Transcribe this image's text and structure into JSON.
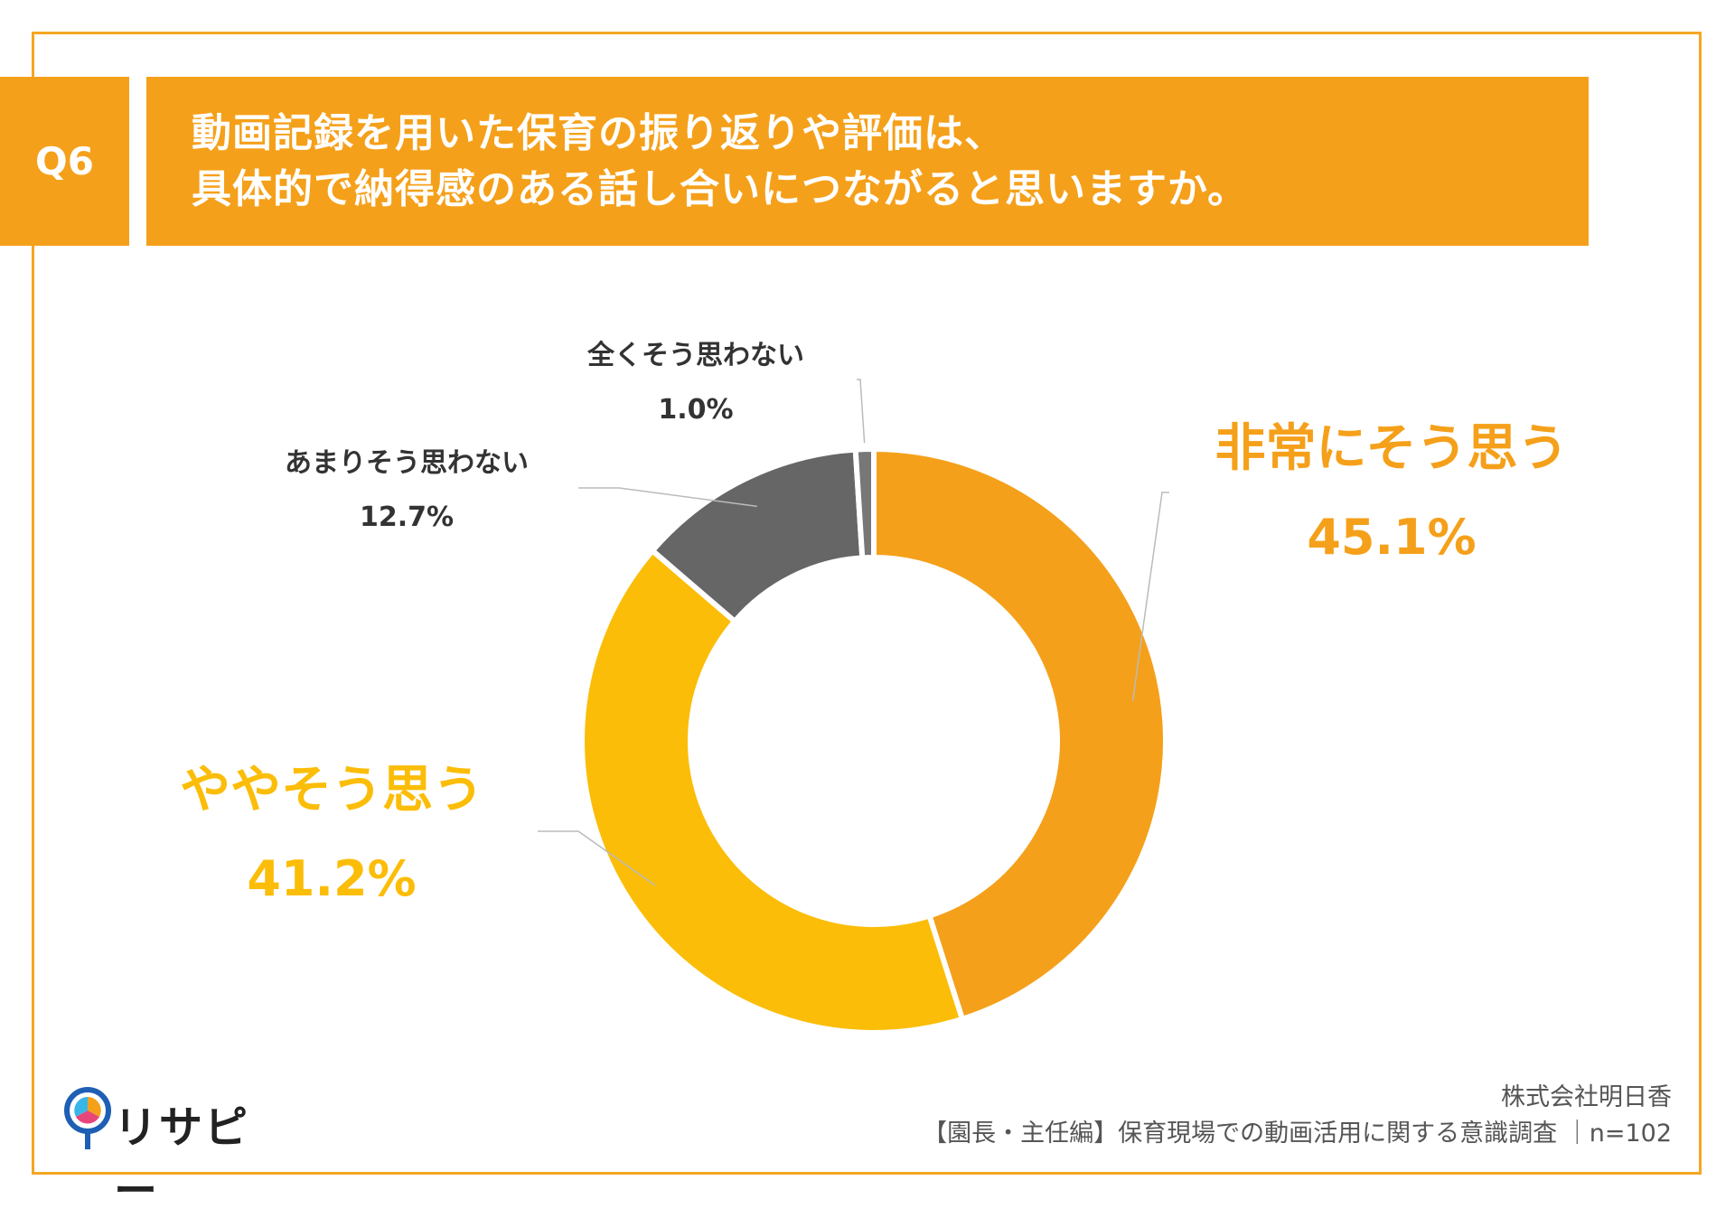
{
  "question": {
    "badge": "Q6",
    "line1": "動画記録を用いた保育の振り返りや評価は、",
    "line2": "具体的で納得感のある話し合いにつながると思いますか。"
  },
  "chart_data": {
    "type": "pie",
    "variant": "donut",
    "categories": [
      "非常にそう思う",
      "ややそう思う",
      "あまりそう思わない",
      "全くそう思わない"
    ],
    "values": [
      45.1,
      41.2,
      12.7,
      1.0
    ],
    "value_labels": [
      "45.1%",
      "41.2%",
      "12.7%",
      "1.0%"
    ],
    "colors": [
      "#f5a01a",
      "#fbbd08",
      "#666666",
      "#777777"
    ],
    "label_colors": [
      "#f5a01a",
      "#fbbd08",
      "#333333",
      "#333333"
    ],
    "start": "12 o'clock, clockwise"
  },
  "footer": {
    "org": "株式会社明日香",
    "survey": "【園長・主任編】保育現場での動画活用に関する意識調査 ｜n=102"
  },
  "logo": {
    "text": "リサピー"
  }
}
